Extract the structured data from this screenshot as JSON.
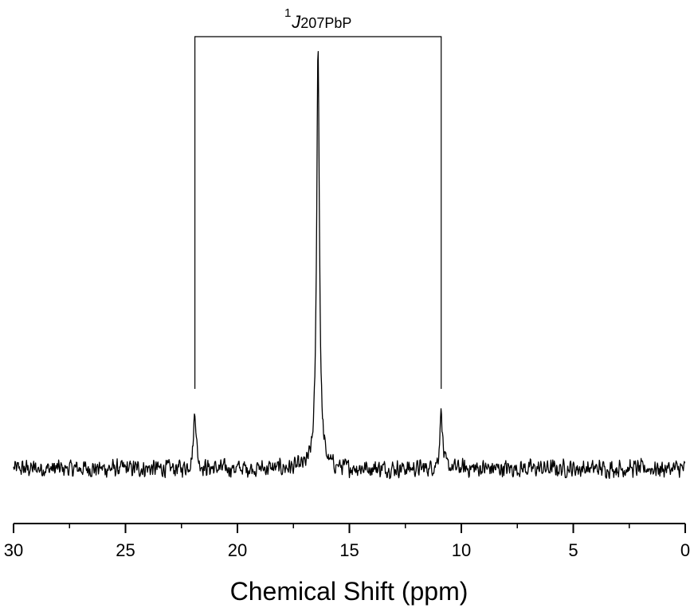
{
  "chart_data": {
    "type": "line",
    "title": "",
    "xlabel": "Chemical Shift (ppm)",
    "ylabel": "",
    "xlim": [
      30,
      0
    ],
    "x_reversed": true,
    "x_ticks": [
      30,
      25,
      20,
      15,
      10,
      5,
      0
    ],
    "x_tick_labels": [
      "30",
      "25",
      "20",
      "15",
      "10",
      "5",
      "0"
    ],
    "y_axis_visible": false,
    "grid": false,
    "legend": "none",
    "series": [
      {
        "line_color": "#000000",
        "baseline_intensity": 0.0,
        "noise_amplitude": 0.025,
        "peaks": [
          {
            "shift_ppm": 21.9,
            "relative_intensity": 0.14
          },
          {
            "shift_ppm": 16.4,
            "relative_intensity": 1.0
          },
          {
            "shift_ppm": 10.9,
            "relative_intensity": 0.14
          }
        ]
      }
    ],
    "annotations": [
      {
        "type": "coupling_bracket",
        "from_ppm": 21.9,
        "to_ppm": 10.9,
        "label_superscript": "1",
        "label_main": "J",
        "label_subscript": "207PbP"
      }
    ]
  }
}
